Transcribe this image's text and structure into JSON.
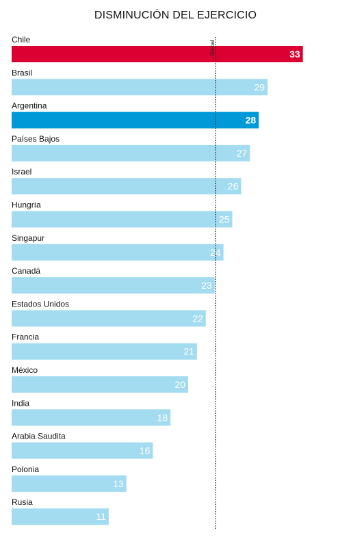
{
  "chart_data": {
    "type": "bar",
    "orientation": "horizontal",
    "title": "DISMINUCIÓN DEL EJERCICIO",
    "categories": [
      "Chile",
      "Brasil",
      "Argentina",
      "Países Bajos",
      "Israel",
      "Hungría",
      "Singapur",
      "Canadá",
      "Estados Unidos",
      "Francia",
      "México",
      "India",
      "Arabia Saudita",
      "Polonia",
      "Rusia"
    ],
    "values": [
      33,
      29,
      28,
      27,
      26,
      25,
      24,
      23,
      22,
      21,
      20,
      18,
      16,
      13,
      11
    ],
    "highlight": {
      "Chile": "#dc0032",
      "Argentina": "#0099d8"
    },
    "default_color": "#a3dcf0",
    "xlim": [
      0,
      33.8
    ],
    "reference_line": {
      "label": "Global",
      "value": 23.1,
      "style": "dotted"
    },
    "grid": false,
    "legend": "none"
  }
}
